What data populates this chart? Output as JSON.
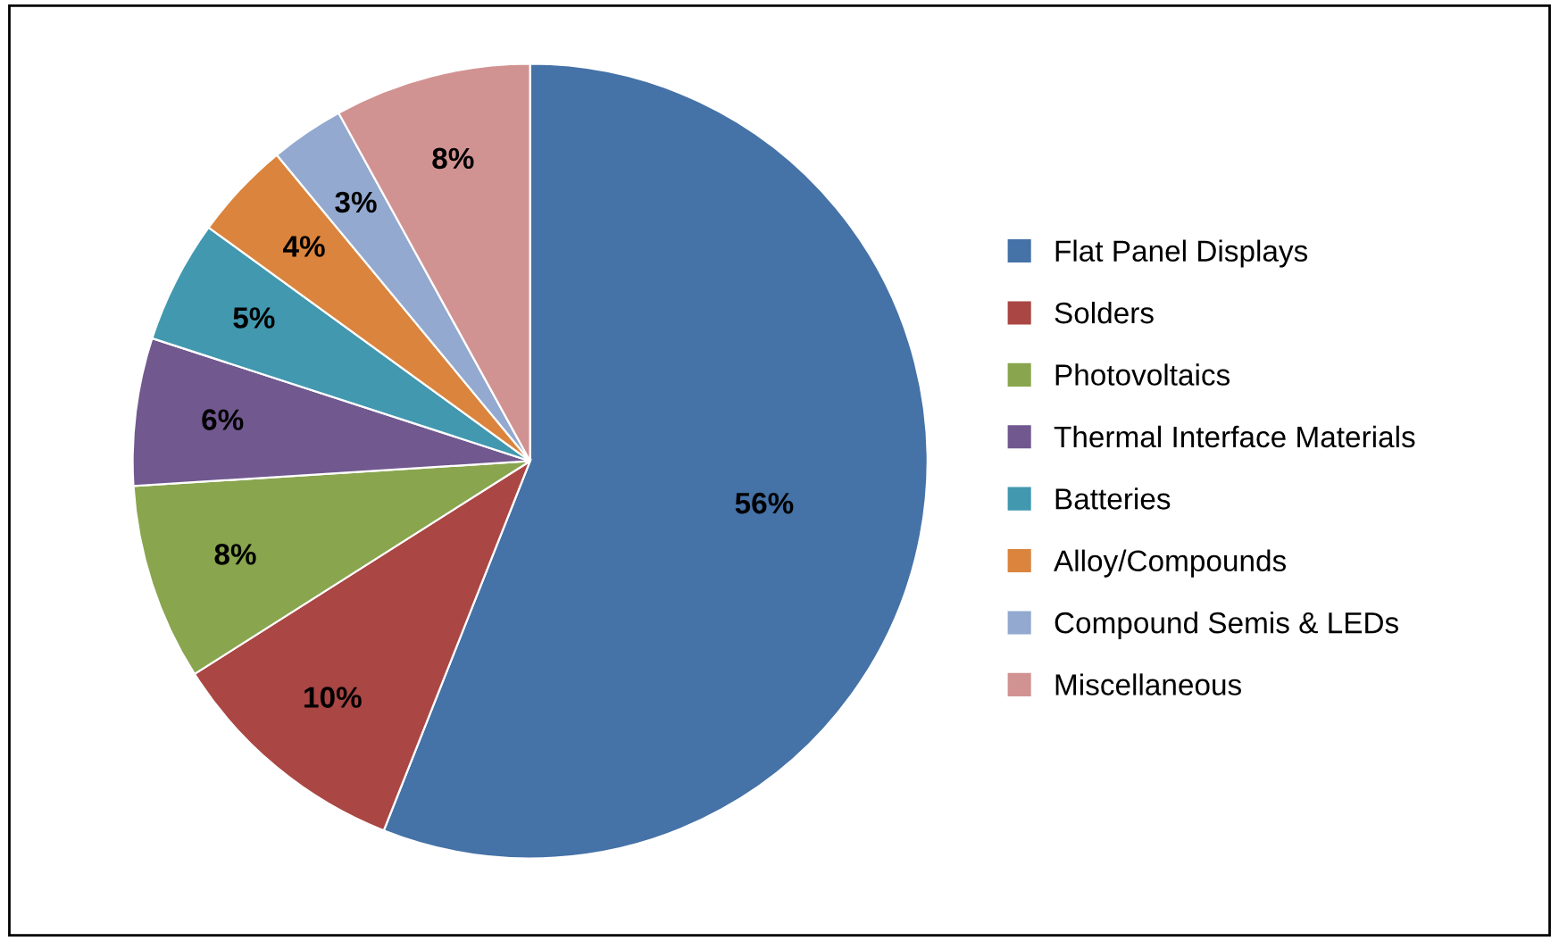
{
  "chart_data": {
    "type": "pie",
    "categories": [
      "Flat Panel Displays",
      "Solders",
      "Photovoltaics",
      "Thermal Interface Materials",
      "Batteries",
      "Alloy/Compounds",
      "Compound Semis & LEDs",
      "Miscellaneous"
    ],
    "values": [
      56,
      10,
      8,
      6,
      5,
      4,
      3,
      8
    ],
    "colors": [
      "#4572a7",
      "#aa4643",
      "#89a54e",
      "#71588f",
      "#4198af",
      "#db843d",
      "#93a9cf",
      "#d19392"
    ],
    "value_labels": [
      "56%",
      "10%",
      "8%",
      "6%",
      "5%",
      "4%",
      "3%",
      "8%"
    ],
    "legend": "right"
  }
}
